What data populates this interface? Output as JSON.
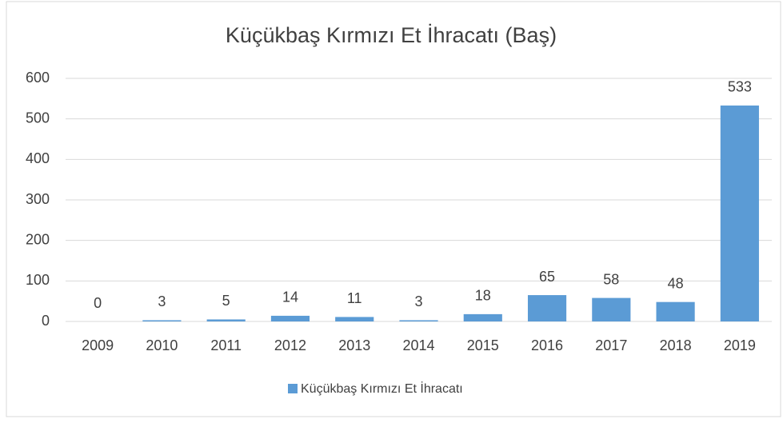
{
  "chart_data": {
    "type": "bar",
    "title": "Küçükbaş Kırmızı Et İhracatı (Baş)",
    "categories": [
      "2009",
      "2010",
      "2011",
      "2012",
      "2013",
      "2014",
      "2015",
      "2016",
      "2017",
      "2018",
      "2019"
    ],
    "series": [
      {
        "name": "Küçükbaş Kırmızı Et İhracatı",
        "color": "#5b9bd5",
        "values": [
          0,
          3,
          5,
          14,
          11,
          3,
          18,
          65,
          58,
          48,
          533
        ]
      }
    ],
    "ylim": [
      0,
      600
    ],
    "yticks": [
      0,
      100,
      200,
      300,
      400,
      500,
      600
    ],
    "grid": true,
    "legend": "bottom"
  }
}
